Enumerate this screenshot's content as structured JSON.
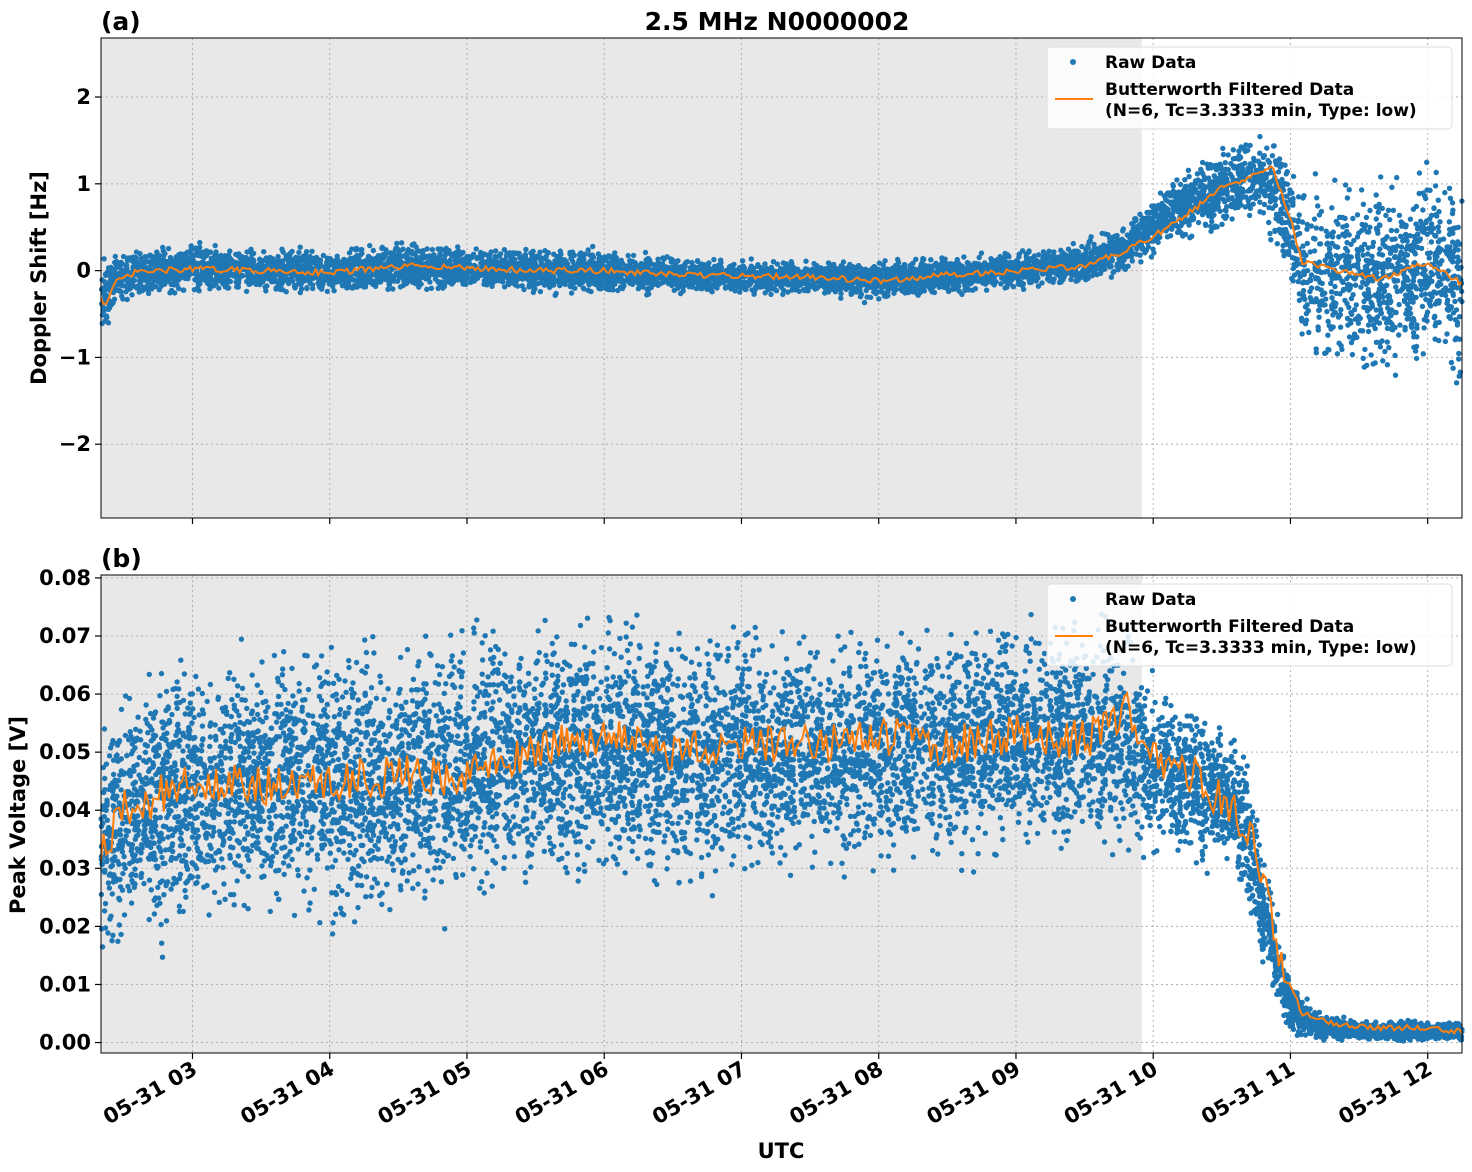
{
  "figure": {
    "title": "2.5 MHz N0000002",
    "xlabel": "UTC"
  },
  "colors": {
    "raw": "#1f77b4",
    "filtered": "#ff7f0e",
    "shade": "#e8e8e8"
  },
  "chart_data": [
    {
      "type": "scatter",
      "panel_label": "(a)",
      "ylabel": "Doppler Shift [Hz]",
      "xlim": [
        "05-31 02:20",
        "05-31 12:15"
      ],
      "ylim": [
        -2.85,
        2.68
      ],
      "y_ticks": [
        -2,
        -1,
        0,
        1,
        2
      ],
      "y_tick_labels": [
        "−2",
        "−1",
        "0",
        "1",
        "2"
      ],
      "x_ticks": [
        "05-31 03",
        "05-31 04",
        "05-31 05",
        "05-31 06",
        "05-31 07",
        "05-31 08",
        "05-31 09",
        "05-31 10",
        "05-31 11",
        "05-31 12"
      ],
      "x_tick_labels_shown": false,
      "shaded_region": [
        "05-31 02:20",
        "05-31 09:55"
      ],
      "grid": true,
      "legend_position": "top-right",
      "legend": [
        "Raw Data",
        "Butterworth Filtered Data\n(N=6, Tc=3.3333 min, Type: low)"
      ],
      "series": [
        {
          "name": "Raw Data",
          "kind": "scatter",
          "envelope": {
            "x": [
              "05-31 02:20",
              "05-31 02:25",
              "05-31 02:35",
              "05-31 03:00",
              "05-31 03:30",
              "05-31 04:00",
              "05-31 04:40",
              "05-31 05:00",
              "05-31 05:30",
              "05-31 06:00",
              "05-31 06:30",
              "05-31 07:00",
              "05-31 07:30",
              "05-31 08:00",
              "05-31 08:30",
              "05-31 09:00",
              "05-31 09:30",
              "05-31 09:50",
              "05-31 10:10",
              "05-31 10:30",
              "05-31 10:45",
              "05-31 10:55",
              "05-31 11:05",
              "05-31 11:30",
              "05-31 12:00",
              "05-31 12:15"
            ],
            "center": [
              -0.35,
              -0.15,
              -0.03,
              0.03,
              0.0,
              -0.02,
              0.05,
              0.02,
              0.0,
              -0.02,
              -0.05,
              -0.08,
              -0.08,
              -0.12,
              -0.05,
              0.0,
              0.08,
              0.3,
              0.7,
              0.95,
              1.1,
              0.9,
              0.0,
              -0.1,
              0.0,
              -0.1
            ],
            "spread": [
              0.35,
              0.2,
              0.15,
              0.17,
              0.15,
              0.15,
              0.18,
              0.15,
              0.15,
              0.15,
              0.12,
              0.12,
              0.12,
              0.14,
              0.13,
              0.13,
              0.15,
              0.17,
              0.22,
              0.28,
              0.3,
              0.35,
              0.6,
              0.65,
              0.65,
              0.7
            ]
          }
        },
        {
          "name": "Butterworth Filtered Data\n(N=6, Tc=3.3333 min, Type: low)",
          "kind": "line",
          "x": [
            "05-31 02:20",
            "05-31 02:22",
            "05-31 02:26",
            "05-31 02:35",
            "05-31 03:00",
            "05-31 03:30",
            "05-31 04:00",
            "05-31 04:40",
            "05-31 05:00",
            "05-31 05:30",
            "05-31 06:00",
            "05-31 06:30",
            "05-31 07:00",
            "05-31 07:30",
            "05-31 08:00",
            "05-31 08:30",
            "05-31 09:00",
            "05-31 09:30",
            "05-31 09:50",
            "05-31 10:10",
            "05-31 10:30",
            "05-31 10:45",
            "05-31 10:52",
            "05-31 11:00",
            "05-31 11:05",
            "05-31 11:20",
            "05-31 11:40",
            "05-31 12:00",
            "05-31 12:15"
          ],
          "y": [
            -0.3,
            -0.4,
            -0.15,
            -0.02,
            0.02,
            0.0,
            -0.02,
            0.06,
            0.03,
            0.0,
            0.0,
            -0.05,
            -0.06,
            -0.07,
            -0.12,
            -0.05,
            0.0,
            0.05,
            0.25,
            0.55,
            0.95,
            1.1,
            1.2,
            0.6,
            0.1,
            0.0,
            -0.1,
            0.1,
            -0.15
          ]
        }
      ]
    },
    {
      "type": "scatter",
      "panel_label": "(b)",
      "ylabel": "Peak Voltage [V]",
      "xlim": [
        "05-31 02:20",
        "05-31 12:15"
      ],
      "ylim": [
        -0.0018,
        0.0805
      ],
      "y_ticks": [
        0.0,
        0.01,
        0.02,
        0.03,
        0.04,
        0.05,
        0.06,
        0.07,
        0.08
      ],
      "y_tick_labels": [
        "0.00",
        "0.01",
        "0.02",
        "0.03",
        "0.04",
        "0.05",
        "0.06",
        "0.07",
        "0.08"
      ],
      "x_ticks": [
        "05-31 03",
        "05-31 04",
        "05-31 05",
        "05-31 06",
        "05-31 07",
        "05-31 08",
        "05-31 09",
        "05-31 10",
        "05-31 11",
        "05-31 12"
      ],
      "x_tick_labels_shown": true,
      "shaded_region": [
        "05-31 02:20",
        "05-31 09:55"
      ],
      "grid": true,
      "legend_position": "top-right",
      "legend": [
        "Raw Data",
        "Butterworth Filtered Data\n(N=6, Tc=3.3333 min, Type: low)"
      ],
      "series": [
        {
          "name": "Raw Data",
          "kind": "scatter",
          "envelope": {
            "x": [
              "05-31 02:20",
              "05-31 02:30",
              "05-31 03:00",
              "05-31 03:30",
              "05-31 04:00",
              "05-31 04:30",
              "05-31 05:00",
              "05-31 05:30",
              "05-31 06:00",
              "05-31 06:30",
              "05-31 07:00",
              "05-31 07:30",
              "05-31 08:00",
              "05-31 08:30",
              "05-31 09:00",
              "05-31 09:30",
              "05-31 09:50",
              "05-31 10:10",
              "05-31 10:30",
              "05-31 10:40",
              "05-31 10:50",
              "05-31 11:00",
              "05-31 11:10",
              "05-31 11:30",
              "05-31 12:00",
              "05-31 12:15"
            ],
            "center": [
              0.035,
              0.039,
              0.043,
              0.045,
              0.044,
              0.045,
              0.047,
              0.05,
              0.051,
              0.049,
              0.05,
              0.05,
              0.051,
              0.051,
              0.052,
              0.052,
              0.051,
              0.045,
              0.042,
              0.038,
              0.02,
              0.006,
              0.003,
              0.002,
              0.002,
              0.002
            ],
            "spread": [
              0.012,
              0.013,
              0.014,
              0.014,
              0.014,
              0.014,
              0.014,
              0.013,
              0.013,
              0.013,
              0.013,
              0.012,
              0.012,
              0.012,
              0.012,
              0.012,
              0.011,
              0.008,
              0.007,
              0.007,
              0.006,
              0.003,
              0.0015,
              0.001,
              0.001,
              0.001
            ]
          }
        },
        {
          "name": "Butterworth Filtered Data\n(N=6, Tc=3.3333 min, Type: low)",
          "kind": "line",
          "x": [
            "05-31 02:20",
            "05-31 02:30",
            "05-31 03:00",
            "05-31 03:30",
            "05-31 04:00",
            "05-31 04:30",
            "05-31 05:00",
            "05-31 05:30",
            "05-31 06:00",
            "05-31 06:30",
            "05-31 07:00",
            "05-31 07:30",
            "05-31 08:00",
            "05-31 08:30",
            "05-31 09:00",
            "05-31 09:30",
            "05-31 09:50",
            "05-31 10:00",
            "05-31 10:20",
            "05-31 10:35",
            "05-31 10:45",
            "05-31 10:55",
            "05-31 11:05",
            "05-31 11:20",
            "05-31 11:40",
            "05-31 12:00",
            "05-31 12:15"
          ],
          "y": [
            0.033,
            0.04,
            0.045,
            0.044,
            0.045,
            0.046,
            0.046,
            0.051,
            0.053,
            0.05,
            0.052,
            0.051,
            0.053,
            0.051,
            0.053,
            0.052,
            0.057,
            0.05,
            0.045,
            0.04,
            0.033,
            0.015,
            0.005,
            0.003,
            0.0025,
            0.0025,
            0.002
          ]
        }
      ]
    }
  ]
}
